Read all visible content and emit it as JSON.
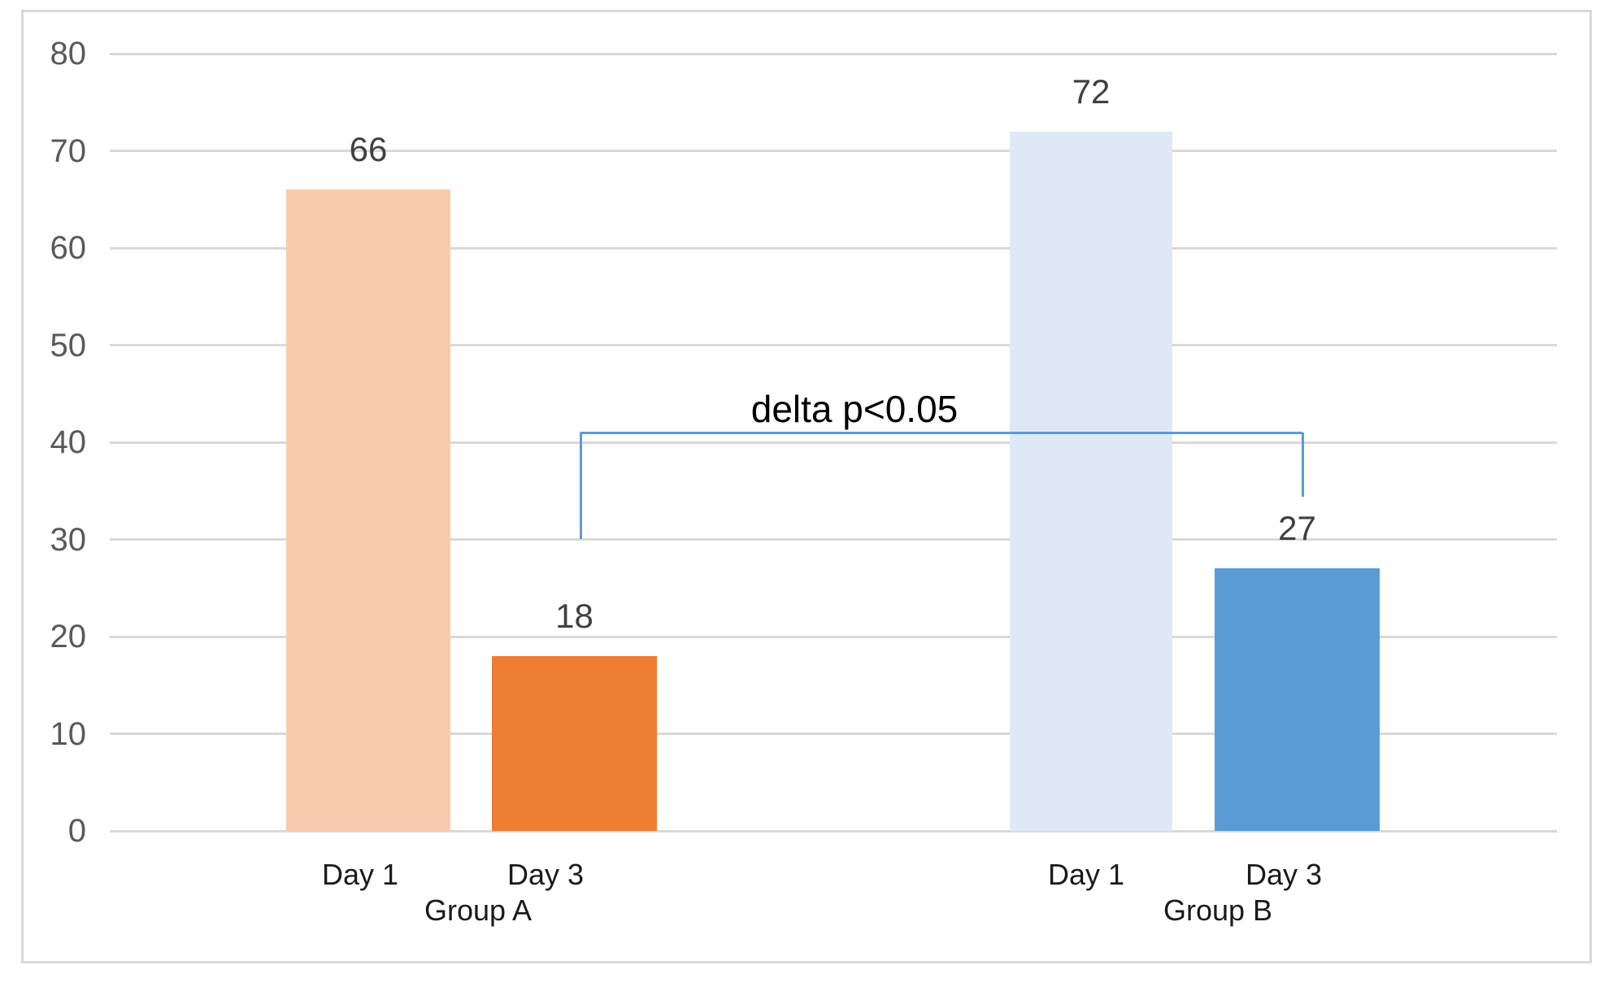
{
  "chart_data": {
    "type": "bar",
    "title": "",
    "xlabel": "",
    "ylabel": "",
    "ylim": [
      0,
      80
    ],
    "ytick_step": 10,
    "ytick_labels": [
      "0",
      "10",
      "20",
      "30",
      "40",
      "50",
      "60",
      "70",
      "80"
    ],
    "grid": true,
    "value_labels_shown": true,
    "groups": [
      {
        "label": "Group A",
        "bars": [
          {
            "category": "Day 1",
            "value": 66,
            "value_label": "66",
            "color": "#F8CBAD"
          },
          {
            "category": "Day 3",
            "value": 18,
            "value_label": "18",
            "color": "#ED7D31"
          }
        ]
      },
      {
        "label": "Group B",
        "bars": [
          {
            "category": "Day 1",
            "value": 72,
            "value_label": "72",
            "color": "#DEE9F5"
          },
          {
            "category": "Day 3",
            "value": 27,
            "value_label": "27",
            "color": "#5B9BD5"
          }
        ]
      }
    ],
    "annotation": {
      "text": "delta p<0.05",
      "bracket_connects": [
        "Group A Day 3",
        "Group B Day 3"
      ]
    },
    "colors": {
      "gridline": "#D9D9D9",
      "frame_border": "#D9D9D9",
      "axis_tick_label": "#595959",
      "value_label": "#404040",
      "category_label": "#1a1a1a",
      "bracket": "#5B9BD5"
    }
  }
}
